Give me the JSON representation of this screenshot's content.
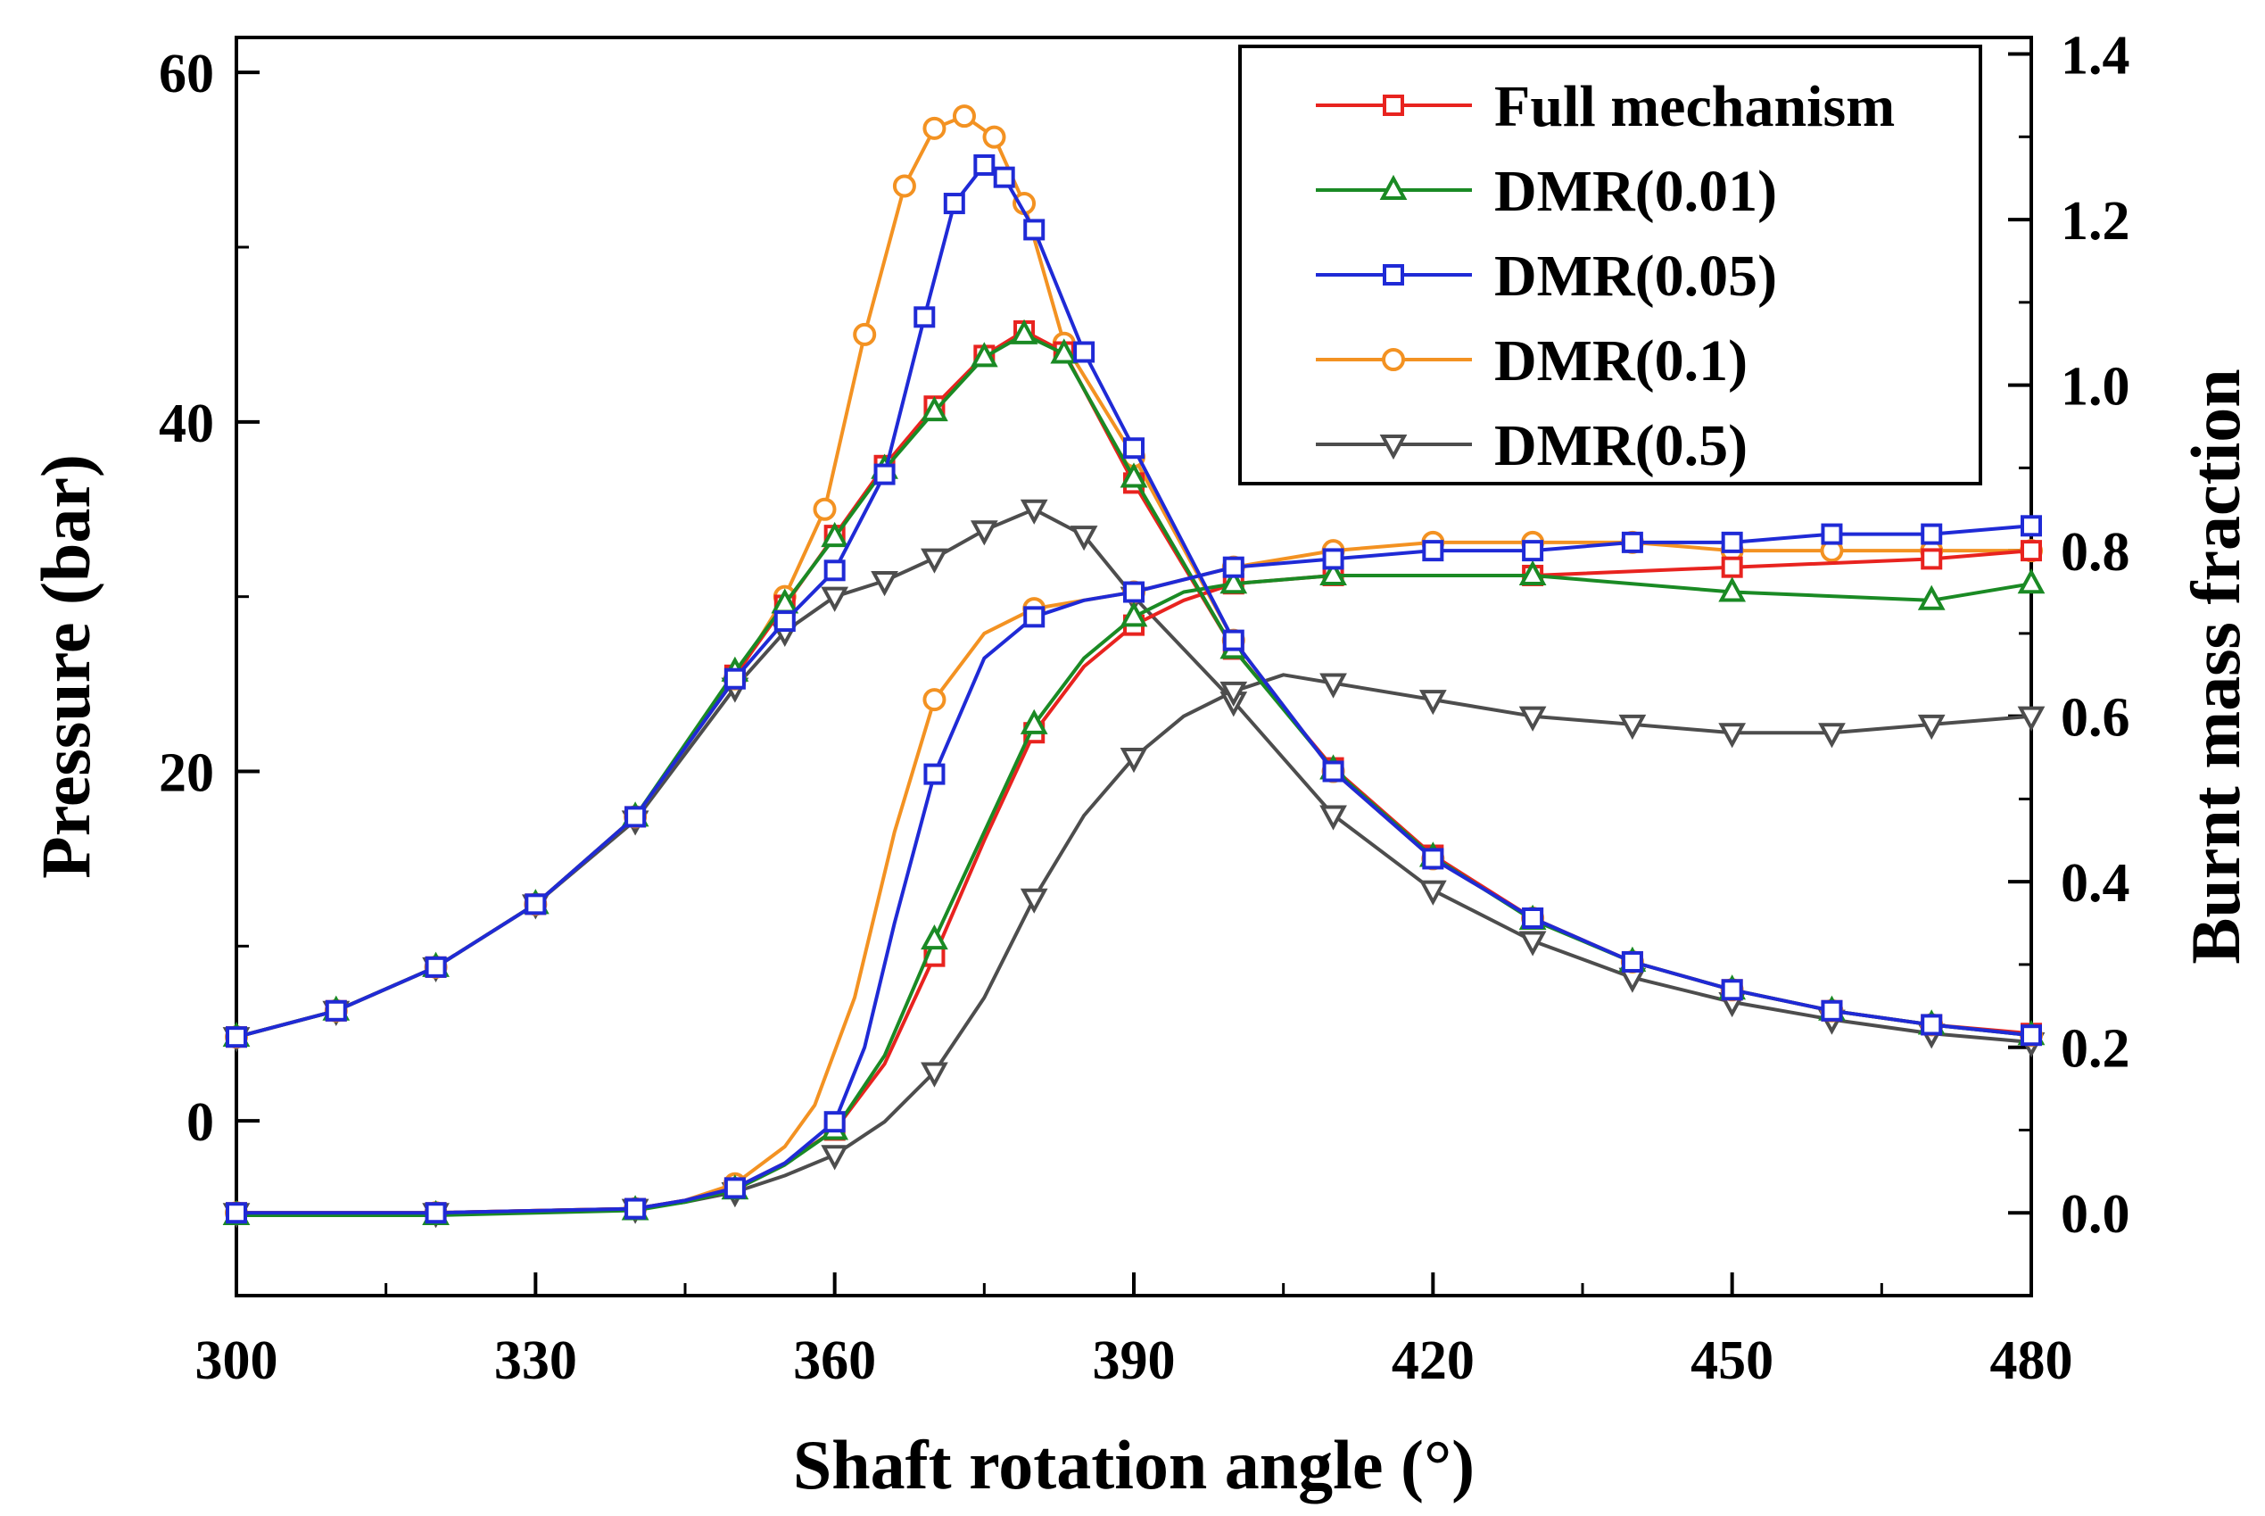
{
  "chart_data": {
    "type": "line",
    "xlabel": "Shaft rotation angle (°)",
    "ylabel_left": "Pressure (bar)",
    "ylabel_right": "Burnt mass fraction",
    "xlim": [
      300,
      480
    ],
    "ylim_left": [
      -10,
      62
    ],
    "ylim_right": [
      -0.1,
      1.42
    ],
    "x_ticks": [
      300,
      330,
      360,
      390,
      420,
      450,
      480
    ],
    "x_tick_labels": [
      "300",
      "330",
      "360",
      "390",
      "420",
      "450",
      "480"
    ],
    "yleft_ticks": [
      0,
      20,
      40,
      60
    ],
    "yleft_tick_labels": [
      "0",
      "20",
      "40",
      "60"
    ],
    "yright_ticks": [
      0.0,
      0.2,
      0.4,
      0.6,
      0.8,
      1.0,
      1.2,
      1.4
    ],
    "yright_tick_labels": [
      "0.0",
      "0.2",
      "0.4",
      "0.6",
      "0.8",
      "1.0",
      "1.2",
      "1.4"
    ],
    "legend_position": "top-right",
    "series": [
      {
        "name": "Full mechanism",
        "color": "#e8231f",
        "marker": "square",
        "pressure": {
          "x": [
            300,
            310,
            320,
            330,
            340,
            350,
            355,
            360,
            365,
            370,
            375,
            379,
            383,
            390,
            400,
            410,
            420,
            430,
            440,
            450,
            460,
            470,
            480
          ],
          "y": [
            4.8,
            6.3,
            8.8,
            12.4,
            17.4,
            25.5,
            29.5,
            33.5,
            37.5,
            40.9,
            43.8,
            45.2,
            44.0,
            36.5,
            27.0,
            20.2,
            15.2,
            11.6,
            9.1,
            7.5,
            6.3,
            5.5,
            5.0
          ]
        },
        "mass_fraction": {
          "x": [
            300,
            320,
            340,
            345,
            350,
            355,
            360,
            365,
            370,
            375,
            380,
            385,
            390,
            395,
            400,
            410,
            430,
            450,
            470,
            480
          ],
          "y": [
            0.0,
            0.0,
            0.005,
            0.015,
            0.03,
            0.06,
            0.1,
            0.18,
            0.31,
            0.45,
            0.58,
            0.66,
            0.71,
            0.74,
            0.76,
            0.77,
            0.77,
            0.78,
            0.79,
            0.8
          ]
        }
      },
      {
        "name": "DMR(0.01)",
        "color": "#1a8a24",
        "marker": "triangle-up",
        "pressure": {
          "x": [
            300,
            310,
            320,
            330,
            340,
            350,
            355,
            360,
            365,
            370,
            375,
            379,
            383,
            390,
            400,
            410,
            420,
            430,
            440,
            450,
            460,
            470,
            480
          ],
          "y": [
            4.8,
            6.3,
            8.8,
            12.4,
            17.4,
            25.7,
            29.6,
            33.4,
            37.3,
            40.6,
            43.7,
            45.0,
            43.9,
            36.8,
            27.0,
            20.1,
            15.1,
            11.5,
            9.1,
            7.5,
            6.3,
            5.5,
            4.9
          ]
        },
        "mass_fraction": {
          "x": [
            300,
            320,
            340,
            345,
            350,
            355,
            360,
            365,
            370,
            375,
            380,
            385,
            390,
            395,
            400,
            410,
            430,
            450,
            470,
            480
          ],
          "y": [
            -0.003,
            -0.003,
            0.003,
            0.013,
            0.028,
            0.058,
            0.1,
            0.19,
            0.33,
            0.46,
            0.59,
            0.67,
            0.72,
            0.75,
            0.76,
            0.77,
            0.77,
            0.75,
            0.74,
            0.76
          ]
        }
      },
      {
        "name": "DMR(0.05)",
        "color": "#1f2ad6",
        "marker": "square",
        "pressure": {
          "x": [
            300,
            310,
            320,
            330,
            340,
            350,
            355,
            360,
            365,
            369,
            372,
            375,
            377,
            380,
            385,
            390,
            400,
            410,
            420,
            430,
            440,
            450,
            460,
            470,
            480
          ],
          "y": [
            4.8,
            6.3,
            8.8,
            12.4,
            17.4,
            25.3,
            28.6,
            31.5,
            37.0,
            46.0,
            52.5,
            54.7,
            54.0,
            51.0,
            44.0,
            38.5,
            27.5,
            20.0,
            15.0,
            11.6,
            9.1,
            7.5,
            6.3,
            5.5,
            4.9
          ]
        },
        "mass_fraction": {
          "x": [
            300,
            320,
            340,
            345,
            350,
            355,
            360,
            363,
            366,
            370,
            375,
            380,
            385,
            390,
            400,
            410,
            420,
            430,
            440,
            450,
            460,
            470,
            480
          ],
          "y": [
            0.0,
            0.0,
            0.005,
            0.015,
            0.03,
            0.06,
            0.11,
            0.2,
            0.35,
            0.53,
            0.67,
            0.72,
            0.74,
            0.75,
            0.78,
            0.79,
            0.8,
            0.8,
            0.81,
            0.81,
            0.82,
            0.82,
            0.83
          ]
        }
      },
      {
        "name": "DMR(0.1)",
        "color": "#f39222",
        "marker": "circle",
        "pressure": {
          "x": [
            300,
            310,
            320,
            330,
            340,
            350,
            355,
            359,
            363,
            367,
            370,
            373,
            376,
            379,
            383,
            390,
            400,
            410,
            420,
            430,
            440,
            450,
            460,
            470,
            480
          ],
          "y": [
            4.8,
            6.3,
            8.8,
            12.4,
            17.4,
            25.3,
            30.0,
            35.0,
            45.0,
            53.5,
            56.8,
            57.5,
            56.3,
            52.5,
            44.5,
            38.0,
            27.5,
            20.0,
            15.0,
            11.6,
            9.1,
            7.5,
            6.3,
            5.5,
            4.9
          ]
        },
        "mass_fraction": {
          "x": [
            300,
            320,
            340,
            345,
            350,
            355,
            358,
            362,
            366,
            370,
            375,
            380,
            390,
            400,
            410,
            420,
            430,
            440,
            450,
            460,
            470,
            480
          ],
          "y": [
            0.0,
            0.0,
            0.005,
            0.015,
            0.035,
            0.08,
            0.13,
            0.26,
            0.46,
            0.62,
            0.7,
            0.73,
            0.75,
            0.78,
            0.8,
            0.81,
            0.81,
            0.81,
            0.8,
            0.8,
            0.8,
            0.8
          ]
        }
      },
      {
        "name": "DMR(0.5)",
        "color": "#4d4d4d",
        "marker": "triangle-down",
        "pressure": {
          "x": [
            300,
            310,
            320,
            330,
            340,
            350,
            355,
            360,
            365,
            370,
            375,
            380,
            385,
            390,
            400,
            410,
            420,
            430,
            440,
            450,
            460,
            470,
            480
          ],
          "y": [
            4.8,
            6.3,
            8.8,
            12.4,
            17.2,
            24.8,
            28.0,
            30.0,
            30.9,
            32.2,
            33.8,
            35.0,
            33.5,
            30.0,
            24.0,
            17.5,
            13.2,
            10.3,
            8.2,
            6.8,
            5.8,
            5.0,
            4.5
          ]
        },
        "mass_fraction": {
          "x": [
            300,
            320,
            340,
            345,
            350,
            355,
            360,
            365,
            370,
            375,
            380,
            385,
            390,
            395,
            400,
            405,
            410,
            420,
            430,
            440,
            450,
            460,
            470,
            480
          ],
          "y": [
            0.0,
            0.0,
            0.005,
            0.013,
            0.025,
            0.045,
            0.07,
            0.11,
            0.17,
            0.26,
            0.38,
            0.48,
            0.55,
            0.6,
            0.63,
            0.65,
            0.64,
            0.62,
            0.6,
            0.59,
            0.58,
            0.58,
            0.59,
            0.6
          ]
        }
      }
    ]
  }
}
